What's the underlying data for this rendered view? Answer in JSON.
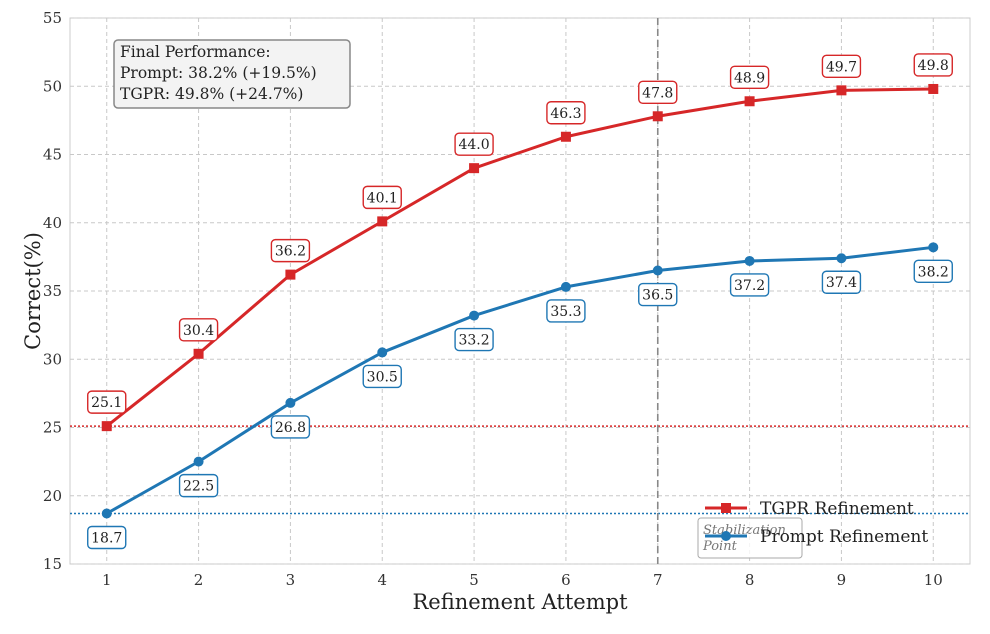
{
  "chart_data": {
    "type": "line",
    "title": "",
    "xlabel": "Refinement Attempt",
    "ylabel": "Correct(%)",
    "xlim": [
      0.6,
      10.4
    ],
    "ylim": [
      15,
      55
    ],
    "x": [
      1,
      2,
      3,
      4,
      5,
      6,
      7,
      8,
      9,
      10
    ],
    "x_ticks": [
      1,
      2,
      3,
      4,
      5,
      6,
      7,
      8,
      9,
      10
    ],
    "y_ticks": [
      15,
      20,
      25,
      30,
      35,
      40,
      45,
      50,
      55
    ],
    "grid": true,
    "legend_position": "bottom-right",
    "series": [
      {
        "name": "TGPR Refinement",
        "color": "#d62728",
        "marker": "square",
        "label_position": "above",
        "values": [
          25.1,
          30.4,
          36.2,
          40.1,
          44.0,
          46.3,
          47.8,
          48.9,
          49.7,
          49.8
        ],
        "labels": [
          "25.1",
          "30.4",
          "36.2",
          "40.1",
          "44.0",
          "46.3",
          "47.8",
          "48.9",
          "49.7",
          "49.8"
        ]
      },
      {
        "name": "Prompt Refinement",
        "color": "#1f77b4",
        "marker": "circle",
        "label_position": "below",
        "values": [
          18.7,
          22.5,
          26.8,
          30.5,
          33.2,
          35.3,
          36.5,
          37.2,
          37.4,
          38.2
        ],
        "labels": [
          "18.7",
          "22.5",
          "26.8",
          "30.5",
          "33.2",
          "35.3",
          "36.5",
          "37.2",
          "37.4",
          "38.2"
        ]
      }
    ],
    "reference_lines": [
      {
        "orientation": "horizontal",
        "value": 25.1,
        "color": "#d62728",
        "style": "dotted"
      },
      {
        "orientation": "horizontal",
        "value": 18.7,
        "color": "#1f77b4",
        "style": "dotted"
      },
      {
        "orientation": "vertical",
        "value": 7,
        "color": "#888888",
        "style": "dashed"
      }
    ],
    "annotations": {
      "info_box": {
        "lines": [
          "Final Performance:",
          "Prompt: 38.2% (+19.5%)",
          "TGPR: 49.8% (+24.7%)"
        ]
      },
      "stabilization": {
        "lines": [
          "Stabilization",
          "Point"
        ]
      }
    }
  }
}
